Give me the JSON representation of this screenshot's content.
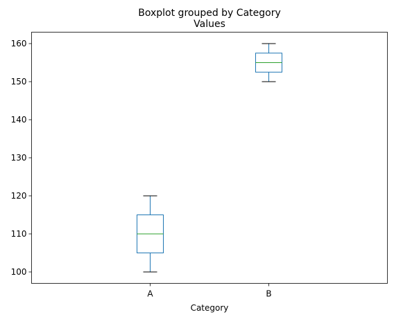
{
  "chart_data": {
    "type": "box",
    "suptitle": "Boxplot grouped by Category",
    "title": "Values",
    "xlabel": "Category",
    "ylabel": "",
    "categories": [
      "A",
      "B"
    ],
    "boxes": [
      {
        "category": "A",
        "whisker_low": 100,
        "q1": 105,
        "median": 110,
        "q3": 115,
        "whisker_high": 120
      },
      {
        "category": "B",
        "whisker_low": 150,
        "q1": 152.5,
        "median": 155,
        "q3": 157.5,
        "whisker_high": 160
      }
    ],
    "ylim": [
      97,
      163
    ],
    "yticks": [
      100,
      110,
      120,
      130,
      140,
      150,
      160
    ],
    "grid": false,
    "legend": "none",
    "colors": {
      "box": "#1f77b4",
      "median": "#2ca02c",
      "cap": "#000000",
      "axis": "#000000"
    }
  }
}
